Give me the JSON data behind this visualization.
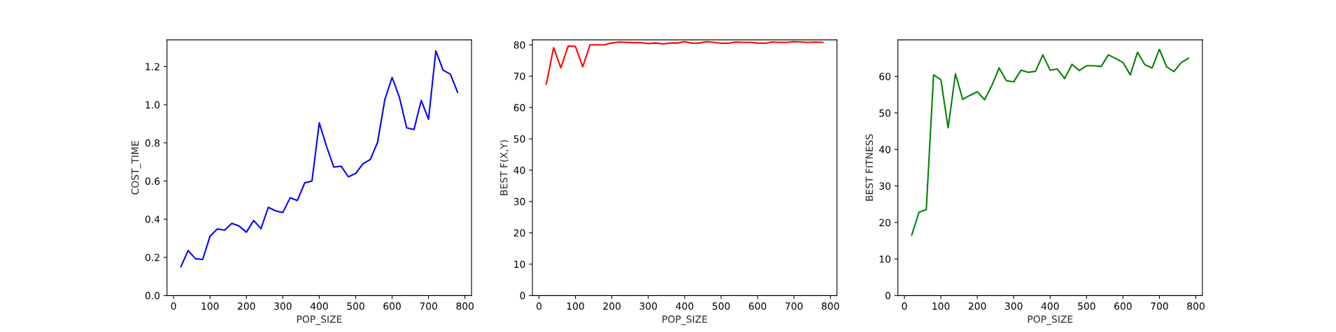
{
  "chart_data": [
    {
      "type": "line",
      "xlabel": "POP_SIZE",
      "ylabel": "COST_TIME",
      "x": [
        20,
        40,
        60,
        80,
        100,
        120,
        140,
        160,
        180,
        200,
        220,
        240,
        260,
        280,
        300,
        320,
        340,
        360,
        380,
        400,
        420,
        440,
        460,
        480,
        500,
        520,
        540,
        560,
        580,
        600,
        620,
        640,
        660,
        680,
        700,
        720,
        740,
        760,
        780
      ],
      "series": [
        {
          "color": "#0000ff",
          "values": [
            0.15,
            0.236,
            0.193,
            0.189,
            0.31,
            0.349,
            0.342,
            0.378,
            0.364,
            0.332,
            0.393,
            0.35,
            0.462,
            0.444,
            0.435,
            0.512,
            0.498,
            0.59,
            0.6,
            0.905,
            0.781,
            0.673,
            0.678,
            0.622,
            0.64,
            0.69,
            0.713,
            0.802,
            1.027,
            1.143,
            1.039,
            0.879,
            0.87,
            1.022,
            0.924,
            1.282,
            1.181,
            1.16,
            1.064
          ]
        }
      ],
      "xlim": [
        -18,
        818
      ],
      "xticks": [
        0,
        100,
        200,
        300,
        400,
        500,
        600,
        700,
        800
      ],
      "ylim": [
        0,
        1.34
      ],
      "yticks": [
        {
          "value": 0,
          "label": "0.0"
        },
        0.2,
        0.4,
        0.6,
        0.8,
        {
          "value": 1,
          "label": "1.0"
        },
        1.2
      ],
      "grid": false,
      "legend": false
    },
    {
      "type": "line",
      "xlabel": "POP_SIZE",
      "ylabel": "BEST F(X,Y)",
      "x": [
        20,
        40,
        60,
        80,
        100,
        120,
        140,
        160,
        180,
        200,
        220,
        240,
        260,
        280,
        300,
        320,
        340,
        360,
        380,
        400,
        420,
        440,
        460,
        480,
        500,
        520,
        540,
        560,
        580,
        600,
        620,
        640,
        660,
        680,
        700,
        720,
        740,
        760,
        780
      ],
      "series": [
        {
          "color": "#ff0000",
          "values": [
            67.4,
            79.1,
            72.7,
            79.6,
            79.5,
            73.0,
            80.0,
            80.0,
            80.0,
            80.6,
            80.9,
            80.8,
            80.7,
            80.7,
            80.4,
            80.6,
            80.3,
            80.6,
            80.6,
            81.0,
            80.5,
            80.6,
            81.0,
            80.8,
            80.5,
            80.5,
            80.9,
            80.8,
            80.8,
            80.6,
            80.5,
            80.9,
            80.8,
            80.8,
            81.0,
            80.9,
            80.8,
            80.9,
            80.8
          ]
        }
      ],
      "xlim": [
        -18,
        818
      ],
      "xticks": [
        0,
        100,
        200,
        300,
        400,
        500,
        600,
        700,
        800
      ],
      "ylim": [
        0,
        81.6
      ],
      "yticks": [
        0,
        10,
        20,
        30,
        40,
        50,
        60,
        70,
        80
      ],
      "grid": false,
      "legend": false
    },
    {
      "type": "line",
      "xlabel": "POP_SIZE",
      "ylabel": "BEST FITNESS",
      "x": [
        20,
        40,
        60,
        80,
        100,
        120,
        140,
        160,
        180,
        200,
        220,
        240,
        260,
        280,
        300,
        320,
        340,
        360,
        380,
        400,
        420,
        440,
        460,
        480,
        500,
        520,
        540,
        560,
        580,
        600,
        620,
        640,
        660,
        680,
        700,
        720,
        740,
        760,
        780
      ],
      "series": [
        {
          "color": "#008000",
          "values": [
            16.5,
            22.8,
            23.5,
            60.4,
            59.1,
            45.9,
            60.7,
            53.7,
            54.8,
            55.8,
            53.6,
            57.5,
            62.3,
            58.8,
            58.5,
            61.7,
            61.1,
            61.4,
            65.9,
            61.7,
            62.0,
            59.4,
            63.3,
            61.6,
            62.9,
            62.9,
            62.7,
            65.9,
            64.9,
            63.8,
            60.4,
            66.6,
            63.2,
            62.3,
            67.4,
            62.6,
            61.3,
            63.8,
            65.0
          ]
        }
      ],
      "xlim": [
        -18,
        818
      ],
      "xticks": [
        0,
        100,
        200,
        300,
        400,
        500,
        600,
        700,
        800
      ],
      "ylim": [
        0,
        70
      ],
      "yticks": [
        0,
        10,
        20,
        30,
        40,
        50,
        60
      ],
      "grid": false,
      "legend": false
    }
  ]
}
